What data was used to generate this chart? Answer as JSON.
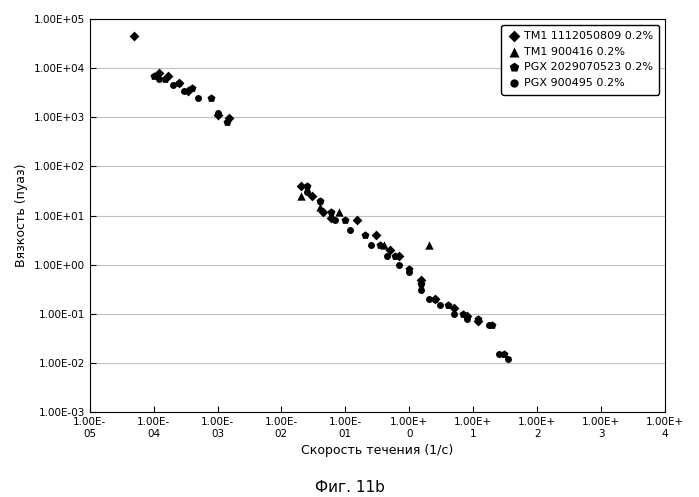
{
  "title": "",
  "xlabel": "Скорость течения (1/c)",
  "ylabel": "Вязкость (пуаз)",
  "caption": "Фиг. 11b",
  "legend_entries": [
    {
      "label": "TM1 1112050809 0.2%",
      "marker": "D"
    },
    {
      "label": "TM1 900416 0.2%",
      "marker": "^"
    },
    {
      "label": "PGX 2029070523 0.2%",
      "marker": "p"
    },
    {
      "label": "PGX 900495 0.2%",
      "marker": "o"
    }
  ],
  "series": {
    "TM1_1112050809": {
      "marker": "D",
      "ms": 5,
      "x": [
        5e-05,
        0.00012,
        0.00017,
        0.00025,
        0.00035,
        0.001,
        0.0015,
        0.02,
        0.03,
        0.045,
        0.06,
        0.15,
        0.3,
        0.5,
        0.7,
        1.5,
        2.5,
        5.0,
        8.0,
        12.0
      ],
      "y": [
        45000.0,
        8000.0,
        7000.0,
        5000.0,
        3500.0,
        1100.0,
        950.0,
        40.0,
        25.0,
        12.0,
        9.0,
        8.0,
        4.0,
        2.0,
        1.5,
        0.5,
        0.2,
        0.13,
        0.09,
        0.07
      ]
    },
    "TM1_900416": {
      "marker": "^",
      "ms": 6,
      "x": [
        0.02,
        0.04,
        0.08,
        0.4,
        2.0
      ],
      "y": [
        25.0,
        15.0,
        12.0,
        2.5,
        2.5
      ]
    },
    "PGX_2029070523": {
      "marker": "p",
      "ms": 6,
      "x": [
        0.0001,
        0.00015,
        0.00025,
        0.0004,
        0.0008,
        0.0014,
        0.025,
        0.04,
        0.06,
        0.1,
        0.2,
        0.35,
        0.6,
        1.0,
        1.5,
        2.5,
        4.0,
        7.0,
        12.0,
        20.0,
        30.0
      ],
      "y": [
        7000.0,
        6000.0,
        5000.0,
        4000.0,
        2500.0,
        800.0,
        40.0,
        20.0,
        12.0,
        8.0,
        4.0,
        2.5,
        1.5,
        0.8,
        0.4,
        0.2,
        0.15,
        0.1,
        0.08,
        0.06,
        0.015
      ]
    },
    "PGX_900495": {
      "marker": "o",
      "ms": 5,
      "x": [
        0.00012,
        0.0002,
        0.0003,
        0.0005,
        0.001,
        0.025,
        0.04,
        0.07,
        0.12,
        0.25,
        0.45,
        0.7,
        1.0,
        1.5,
        2.0,
        3.0,
        5.0,
        8.0,
        12.0,
        18.0,
        25.0,
        35.0
      ],
      "y": [
        6000.0,
        4500.0,
        3500.0,
        2500.0,
        1200.0,
        30.0,
        20.0,
        8.0,
        5.0,
        2.5,
        1.5,
        1.0,
        0.7,
        0.3,
        0.2,
        0.15,
        0.1,
        0.08,
        0.07,
        0.06,
        0.015,
        0.012
      ]
    }
  },
  "x_ticks": [
    1e-05,
    0.0001,
    0.001,
    0.01,
    0.1,
    1.0,
    10.0,
    100.0,
    1000.0,
    10000.0
  ],
  "x_tick_labels": [
    "1.00E-\n05",
    "1.00E-\n04",
    "1.00E-\n03",
    "1.00E-\n02",
    "1.00E-\n01",
    "1.00E+\n0",
    "1.00E+\n1",
    "1.00E+\n2",
    "1.00E+\n3",
    "1.00E+\n4"
  ],
  "y_ticks": [
    0.001,
    0.01,
    0.1,
    1.0,
    10.0,
    100.0,
    1000.0,
    10000.0,
    100000.0
  ],
  "y_tick_labels": [
    "1.00E-03",
    "1.00E-02",
    "1.00E-01",
    "1.00E+00",
    "1.00E+01",
    "1.00E+02",
    "1.00E+03",
    "1.00E+04",
    "1.00E+05"
  ],
  "xlim": [
    1e-05,
    10000.0
  ],
  "ylim": [
    0.001,
    100000.0
  ],
  "grid_color": "#c0c0c0",
  "bg_color": "#ffffff",
  "font_color": "#000000"
}
